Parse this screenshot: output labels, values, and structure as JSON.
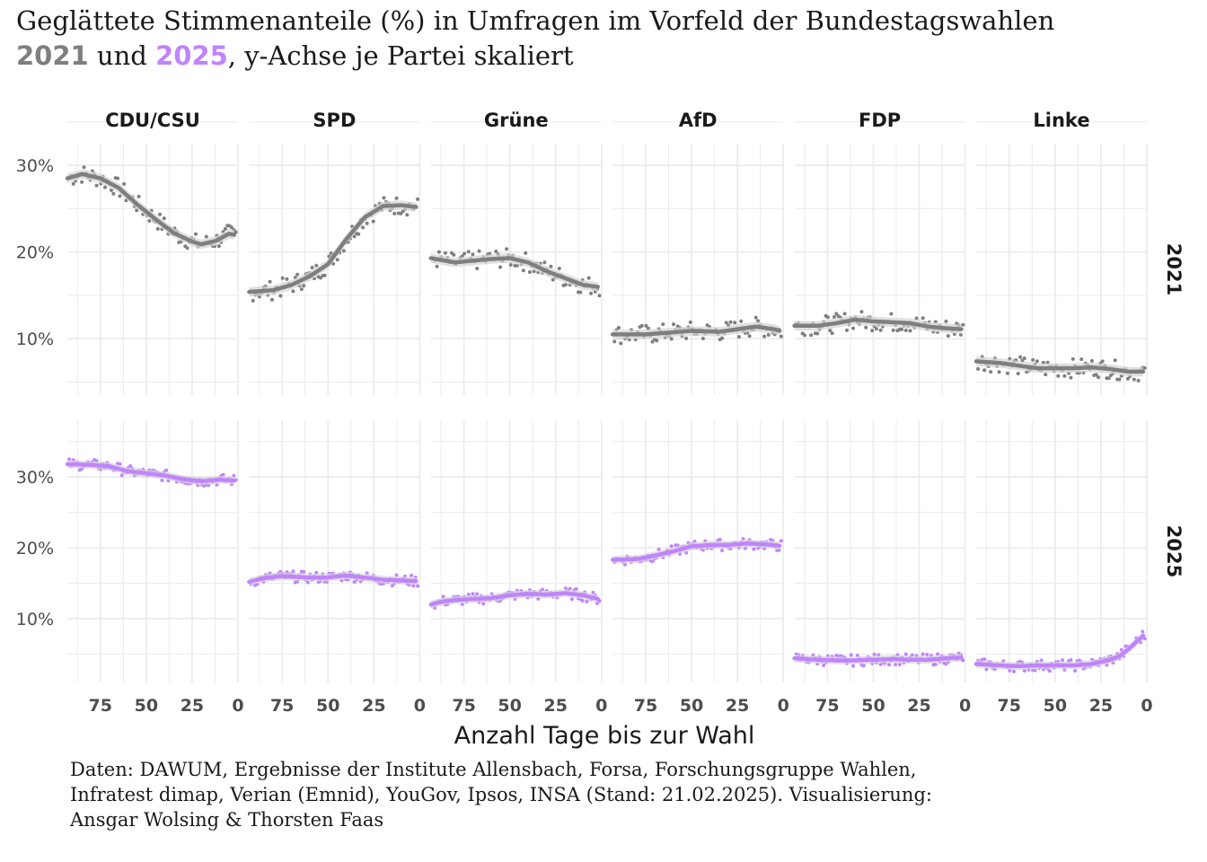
{
  "title": {
    "line1": "Geglättete Stimmenanteile (%) in Umfragen im Vorfeld der Bundestagswahlen",
    "year_2021": "2021",
    "connector": " und ",
    "year_2025": "2025",
    "rest": ", y-Achse je Partei skaliert"
  },
  "caption": {
    "line1": "Daten: DAWUM, Ergebnisse der Institute Allensbach, Forsa, Forschungsgruppe Wahlen,",
    "line2": "Infratest dimap, Verian (Emnid), YouGov, Ipsos, INSA (Stand: 21.02.2025). Visualisierung:",
    "line3": "Ansgar Wolsing & Thorsten Faas"
  },
  "colors": {
    "y2021": "#7f7f7f",
    "y2025": "#c084fc",
    "ribbon": "#d4d4d4",
    "grid": "#ebebeb",
    "text": "#1a1a1a",
    "axis_text": "#4d4d4d"
  },
  "chart_data": {
    "type": "scatter",
    "xlabel": "Anzahl Tage bis zur Wahl",
    "ylabel": "",
    "x_reversed": true,
    "xlim": [
      93,
      0
    ],
    "x_ticks": [
      75,
      50,
      25,
      0
    ],
    "facet_columns": [
      "CDU/CSU",
      "SPD",
      "Grüne",
      "AfD",
      "FDP",
      "Linke"
    ],
    "facet_rows": [
      "2021",
      "2025"
    ],
    "row_y_ranges": {
      "2021": [
        3.5,
        32.5
      ],
      "2025": [
        1,
        38
      ]
    },
    "row_y_ticks": {
      "2021": [
        10,
        20,
        30
      ],
      "2025": [
        10,
        20,
        30
      ]
    },
    "y_tick_labels": [
      "10%",
      "20%",
      "30%"
    ],
    "grid": true,
    "smoothing_band_color": "#d4d4d4",
    "series": [
      {
        "year": "2021",
        "party": "CDU/CSU",
        "smooth": [
          [
            93,
            28.5
          ],
          [
            85,
            29
          ],
          [
            75,
            28.5
          ],
          [
            65,
            27.4
          ],
          [
            55,
            25.5
          ],
          [
            45,
            23.8
          ],
          [
            35,
            22.2
          ],
          [
            25,
            21.2
          ],
          [
            20,
            20.9
          ],
          [
            12,
            21.3
          ],
          [
            5,
            22.1
          ],
          [
            2,
            22
          ]
        ]
      },
      {
        "year": "2021",
        "party": "SPD",
        "smooth": [
          [
            93,
            15.4
          ],
          [
            80,
            15.6
          ],
          [
            70,
            16.2
          ],
          [
            60,
            17.2
          ],
          [
            50,
            18.6
          ],
          [
            40,
            21.5
          ],
          [
            30,
            24
          ],
          [
            20,
            25.3
          ],
          [
            10,
            25.4
          ],
          [
            2,
            25.2
          ]
        ]
      },
      {
        "year": "2021",
        "party": "Grüne",
        "smooth": [
          [
            93,
            19.3
          ],
          [
            80,
            18.8
          ],
          [
            60,
            19.2
          ],
          [
            50,
            19.3
          ],
          [
            40,
            18.8
          ],
          [
            30,
            17.8
          ],
          [
            20,
            17
          ],
          [
            10,
            16.2
          ],
          [
            2,
            16
          ]
        ]
      },
      {
        "year": "2021",
        "party": "AfD",
        "smooth": [
          [
            93,
            10.5
          ],
          [
            75,
            10.5
          ],
          [
            50,
            10.9
          ],
          [
            35,
            10.8
          ],
          [
            25,
            11.1
          ],
          [
            15,
            11.4
          ],
          [
            5,
            11.1
          ],
          [
            2,
            10.9
          ]
        ]
      },
      {
        "year": "2021",
        "party": "FDP",
        "smooth": [
          [
            93,
            11.5
          ],
          [
            80,
            11.5
          ],
          [
            70,
            11.8
          ],
          [
            60,
            12.2
          ],
          [
            50,
            12
          ],
          [
            40,
            11.9
          ],
          [
            30,
            11.8
          ],
          [
            20,
            11.4
          ],
          [
            10,
            11.2
          ],
          [
            2,
            11.1
          ]
        ]
      },
      {
        "year": "2021",
        "party": "Linke",
        "smooth": [
          [
            93,
            7.4
          ],
          [
            80,
            7.2
          ],
          [
            70,
            6.9
          ],
          [
            60,
            6.6
          ],
          [
            50,
            6.6
          ],
          [
            40,
            6.6
          ],
          [
            30,
            6.7
          ],
          [
            20,
            6.5
          ],
          [
            10,
            6.2
          ],
          [
            2,
            6.2
          ]
        ]
      },
      {
        "year": "2025",
        "party": "CDU/CSU",
        "smooth": [
          [
            93,
            31.8
          ],
          [
            80,
            31.7
          ],
          [
            70,
            31.5
          ],
          [
            60,
            30.8
          ],
          [
            50,
            30.5
          ],
          [
            40,
            30.2
          ],
          [
            30,
            29.7
          ],
          [
            20,
            29.4
          ],
          [
            10,
            29.6
          ],
          [
            2,
            29.5
          ]
        ]
      },
      {
        "year": "2025",
        "party": "SPD",
        "smooth": [
          [
            93,
            15.2
          ],
          [
            85,
            15.7
          ],
          [
            75,
            16
          ],
          [
            60,
            15.8
          ],
          [
            50,
            15.8
          ],
          [
            40,
            16.1
          ],
          [
            30,
            15.8
          ],
          [
            20,
            15.5
          ],
          [
            10,
            15.4
          ],
          [
            2,
            15.3
          ]
        ]
      },
      {
        "year": "2025",
        "party": "Grüne",
        "smooth": [
          [
            93,
            12
          ],
          [
            85,
            12.5
          ],
          [
            75,
            12.7
          ],
          [
            60,
            12.9
          ],
          [
            50,
            13.3
          ],
          [
            40,
            13.5
          ],
          [
            30,
            13.4
          ],
          [
            20,
            13.6
          ],
          [
            10,
            13.3
          ],
          [
            2,
            12.8
          ]
        ]
      },
      {
        "year": "2025",
        "party": "AfD",
        "smooth": [
          [
            93,
            18.3
          ],
          [
            80,
            18.4
          ],
          [
            70,
            18.9
          ],
          [
            60,
            19.5
          ],
          [
            50,
            20.2
          ],
          [
            40,
            20.4
          ],
          [
            30,
            20.4
          ],
          [
            20,
            20.6
          ],
          [
            10,
            20.5
          ],
          [
            2,
            20.3
          ]
        ]
      },
      {
        "year": "2025",
        "party": "FDP",
        "smooth": [
          [
            93,
            4.4
          ],
          [
            80,
            4.2
          ],
          [
            70,
            4.1
          ],
          [
            60,
            4.1
          ],
          [
            50,
            4.2
          ],
          [
            40,
            4.3
          ],
          [
            30,
            4.2
          ],
          [
            20,
            4.2
          ],
          [
            10,
            4.4
          ],
          [
            2,
            4.5
          ]
        ]
      },
      {
        "year": "2025",
        "party": "Linke",
        "smooth": [
          [
            93,
            3.6
          ],
          [
            80,
            3.4
          ],
          [
            70,
            3.3
          ],
          [
            60,
            3.4
          ],
          [
            50,
            3.4
          ],
          [
            40,
            3.4
          ],
          [
            30,
            3.6
          ],
          [
            20,
            4.2
          ],
          [
            15,
            4.7
          ],
          [
            10,
            5.7
          ],
          [
            5,
            6.9
          ],
          [
            2,
            7.6
          ]
        ]
      }
    ]
  }
}
